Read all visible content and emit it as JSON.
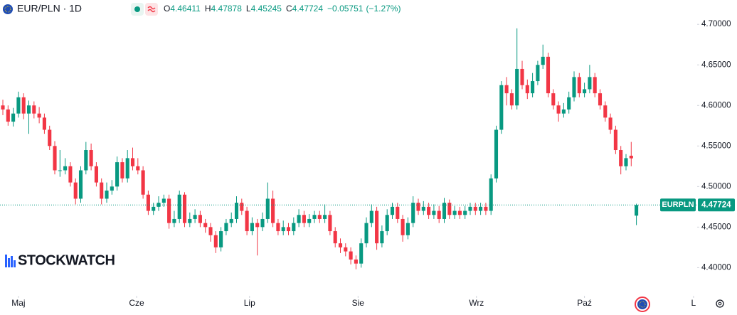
{
  "chart_data": {
    "type": "candlestick",
    "symbol_label": "EUR/PLN · 1D",
    "ohlc_labels": [
      "O",
      "H",
      "L",
      "C"
    ],
    "change": {
      "value": -0.05751,
      "label": "−0.05751"
    },
    "change_pct": {
      "value": -1.27,
      "label": "(−1.27%)"
    },
    "ticker": "EURPLN",
    "watermark": "STOCKWATCH",
    "up_color": "#089981",
    "down_color": "#f23645",
    "grid": false,
    "xlim": [
      -0.55,
      133.7
    ],
    "xticks": [
      {
        "value": 3,
        "label": "Maj"
      },
      {
        "value": 25.75,
        "label": "Cze"
      },
      {
        "value": 47.5,
        "label": "Lip"
      },
      {
        "value": 68.4,
        "label": "Sie"
      },
      {
        "value": 91.2,
        "label": "Wrz"
      },
      {
        "value": 112,
        "label": "Paź"
      },
      {
        "value": 133,
        "label": "L"
      }
    ],
    "ylim": [
      4.353,
      4.73
    ],
    "yticks": [
      {
        "value": 4.4,
        "label": "4.40000"
      },
      {
        "value": 4.45,
        "label": "4.45000"
      },
      {
        "value": 4.5,
        "label": "4.50000"
      },
      {
        "value": 4.55,
        "label": "4.55000"
      },
      {
        "value": 4.6,
        "label": "4.60000"
      },
      {
        "value": 4.65,
        "label": "4.65000"
      },
      {
        "value": 4.7,
        "label": "4.70000"
      }
    ],
    "open": [
      4.6,
      4.595,
      4.58,
      4.59,
      4.61,
      4.59,
      4.6,
      4.59,
      4.585,
      4.57,
      4.55,
      4.52,
      4.52,
      4.525,
      4.505,
      4.485,
      4.52,
      4.545,
      4.525,
      4.505,
      4.485,
      4.495,
      4.5,
      4.53,
      4.51,
      4.535,
      4.525,
      4.52,
      4.49,
      4.47,
      4.475,
      4.48,
      4.485,
      4.455,
      4.46,
      4.49,
      4.455,
      4.46,
      4.465,
      4.455,
      4.45,
      4.44,
      4.425,
      4.445,
      4.455,
      4.46,
      4.48,
      4.47,
      4.445,
      4.455,
      4.45,
      4.46,
      4.485,
      4.455,
      4.445,
      4.45,
      4.445,
      4.455,
      4.465,
      4.455,
      4.46,
      4.465,
      4.46,
      4.465,
      4.445,
      4.43,
      4.425,
      4.42,
      4.41,
      4.405,
      4.43,
      4.455,
      4.47,
      4.43,
      4.445,
      4.465,
      4.475,
      4.46,
      4.44,
      4.455,
      4.48,
      4.47,
      4.475,
      4.465,
      4.47,
      4.46,
      4.48,
      4.465,
      4.47,
      4.465,
      4.47,
      4.475,
      4.47,
      4.475,
      4.47,
      4.51,
      4.57,
      4.625,
      4.615,
      4.6,
      4.645,
      4.625,
      4.615,
      4.63,
      4.65,
      4.66,
      4.615,
      4.6,
      4.59,
      4.595,
      4.61,
      4.635,
      4.615,
      4.62,
      4.635,
      4.615,
      4.6,
      4.585,
      4.57,
      4.545,
      4.525,
      4.538,
      4.46411
    ],
    "high": [
      4.607,
      4.6,
      4.597,
      4.617,
      4.615,
      4.606,
      4.605,
      4.598,
      4.59,
      4.575,
      4.556,
      4.545,
      4.535,
      4.53,
      4.51,
      4.525,
      4.555,
      4.553,
      4.53,
      4.51,
      4.505,
      4.508,
      4.537,
      4.535,
      4.545,
      4.548,
      4.535,
      4.525,
      4.495,
      4.48,
      4.488,
      4.49,
      4.49,
      4.47,
      4.495,
      4.493,
      4.468,
      4.472,
      4.47,
      4.46,
      4.455,
      4.445,
      4.45,
      4.46,
      4.468,
      4.488,
      4.485,
      4.475,
      4.462,
      4.46,
      4.468,
      4.505,
      4.495,
      4.46,
      4.458,
      4.455,
      4.462,
      4.472,
      4.47,
      4.466,
      4.47,
      4.47,
      4.478,
      4.47,
      4.45,
      4.436,
      4.43,
      4.425,
      4.415,
      4.436,
      4.462,
      4.478,
      4.475,
      4.452,
      4.472,
      4.48,
      4.48,
      4.465,
      4.462,
      4.488,
      4.485,
      4.482,
      4.48,
      4.478,
      4.476,
      4.486,
      4.484,
      4.476,
      4.475,
      4.476,
      4.48,
      4.48,
      4.48,
      4.48,
      4.515,
      4.575,
      4.63,
      4.635,
      4.62,
      4.695,
      4.655,
      4.632,
      4.64,
      4.655,
      4.675,
      4.665,
      4.62,
      4.605,
      4.603,
      4.617,
      4.642,
      4.64,
      4.628,
      4.65,
      4.64,
      4.62,
      4.605,
      4.59,
      4.575,
      4.55,
      4.54,
      4.555,
      4.47878
    ],
    "low": [
      4.588,
      4.575,
      4.574,
      4.585,
      4.583,
      4.565,
      4.584,
      4.578,
      4.565,
      4.545,
      4.515,
      4.512,
      4.515,
      4.5,
      4.478,
      4.48,
      4.515,
      4.52,
      4.5,
      4.478,
      4.48,
      4.49,
      4.495,
      4.505,
      4.505,
      4.52,
      4.515,
      4.485,
      4.465,
      4.465,
      4.47,
      4.475,
      4.448,
      4.45,
      4.455,
      4.45,
      4.45,
      4.455,
      4.45,
      4.443,
      4.432,
      4.418,
      4.42,
      4.44,
      4.45,
      4.455,
      4.465,
      4.44,
      4.44,
      4.415,
      4.445,
      4.455,
      4.45,
      4.44,
      4.44,
      4.44,
      4.44,
      4.45,
      4.45,
      4.45,
      4.455,
      4.455,
      4.455,
      4.44,
      4.425,
      4.418,
      4.414,
      4.404,
      4.398,
      4.4,
      4.425,
      4.45,
      4.422,
      4.425,
      4.44,
      4.46,
      4.455,
      4.432,
      4.435,
      4.45,
      4.465,
      4.465,
      4.46,
      4.46,
      4.455,
      4.455,
      4.46,
      4.46,
      4.46,
      4.46,
      4.465,
      4.465,
      4.465,
      4.465,
      4.465,
      4.505,
      4.565,
      4.6,
      4.595,
      4.595,
      4.62,
      4.608,
      4.61,
      4.625,
      4.645,
      4.61,
      4.595,
      4.58,
      4.585,
      4.59,
      4.605,
      4.61,
      4.61,
      4.615,
      4.61,
      4.595,
      4.58,
      4.565,
      4.54,
      4.515,
      4.52,
      4.525,
      4.45245
    ],
    "close": [
      4.595,
      4.58,
      4.59,
      4.61,
      4.59,
      4.6,
      4.59,
      4.585,
      4.57,
      4.55,
      4.52,
      4.52,
      4.525,
      4.505,
      4.485,
      4.52,
      4.545,
      4.525,
      4.505,
      4.485,
      4.495,
      4.5,
      4.53,
      4.51,
      4.535,
      4.525,
      4.52,
      4.49,
      4.47,
      4.475,
      4.48,
      4.485,
      4.455,
      4.46,
      4.49,
      4.455,
      4.46,
      4.465,
      4.455,
      4.45,
      4.44,
      4.425,
      4.445,
      4.455,
      4.46,
      4.48,
      4.47,
      4.445,
      4.455,
      4.45,
      4.46,
      4.485,
      4.455,
      4.445,
      4.45,
      4.445,
      4.455,
      4.465,
      4.455,
      4.46,
      4.465,
      4.46,
      4.465,
      4.445,
      4.43,
      4.425,
      4.42,
      4.41,
      4.405,
      4.43,
      4.455,
      4.47,
      4.43,
      4.445,
      4.465,
      4.475,
      4.46,
      4.44,
      4.455,
      4.48,
      4.47,
      4.475,
      4.465,
      4.47,
      4.46,
      4.48,
      4.465,
      4.47,
      4.465,
      4.47,
      4.475,
      4.47,
      4.475,
      4.47,
      4.51,
      4.57,
      4.625,
      4.615,
      4.6,
      4.645,
      4.625,
      4.615,
      4.63,
      4.65,
      4.66,
      4.615,
      4.6,
      4.59,
      4.595,
      4.61,
      4.635,
      4.615,
      4.62,
      4.635,
      4.615,
      4.6,
      4.585,
      4.57,
      4.545,
      4.525,
      4.535,
      4.53475,
      4.47724
    ]
  }
}
